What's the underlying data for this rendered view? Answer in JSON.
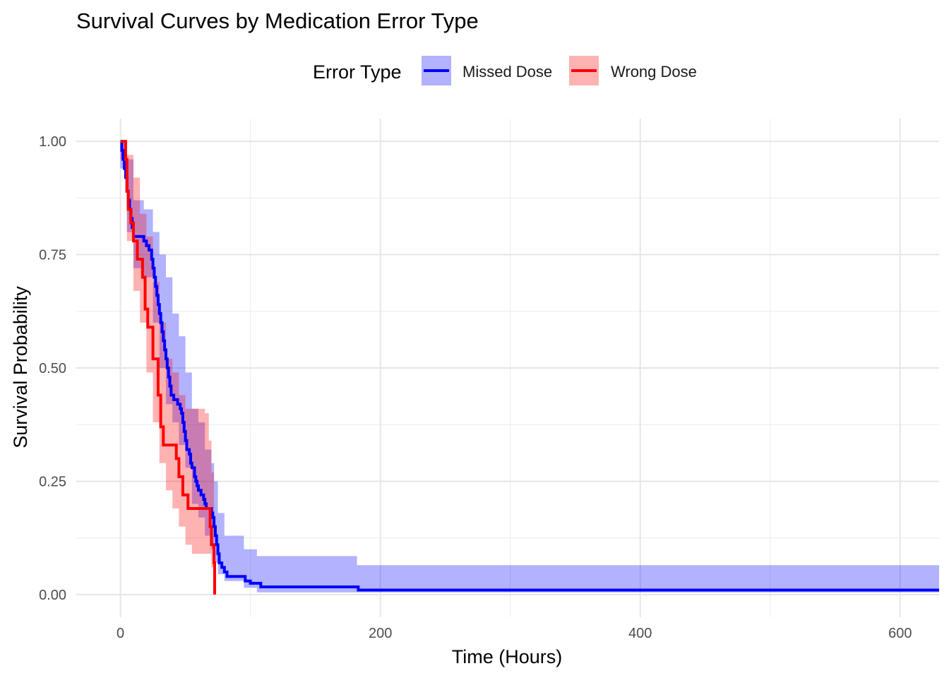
{
  "chart_data": {
    "type": "line",
    "title": "Survival Curves by Medication Error Type",
    "xlabel": "Time (Hours)",
    "ylabel": "Survival Probability",
    "xlim": [
      -34,
      630
    ],
    "ylim": [
      -0.05,
      1.05
    ],
    "x_ticks": [
      0,
      200,
      400,
      600
    ],
    "x_tick_labels": [
      "0",
      "200",
      "400",
      "600"
    ],
    "y_ticks": [
      0,
      0.25,
      0.5,
      0.75,
      1.0
    ],
    "y_tick_labels": [
      "0.00",
      "0.25",
      "0.50",
      "0.75",
      "1.00"
    ],
    "grid": true,
    "legend": {
      "title": "Error Type",
      "position": "top"
    },
    "series": [
      {
        "name": "Missed Dose",
        "color": "#0000FF",
        "band_color": "#0000FF",
        "points": [
          [
            0,
            1.0
          ],
          [
            1,
            0.98
          ],
          [
            2,
            0.96
          ],
          [
            3,
            0.94
          ],
          [
            4,
            0.92
          ],
          [
            5,
            0.89
          ],
          [
            6,
            0.87
          ],
          [
            7,
            0.85
          ],
          [
            8,
            0.83
          ],
          [
            9,
            0.81
          ],
          [
            10,
            0.79
          ],
          [
            18,
            0.78
          ],
          [
            20,
            0.77
          ],
          [
            22,
            0.76
          ],
          [
            24,
            0.74
          ],
          [
            25,
            0.72
          ],
          [
            26,
            0.7
          ],
          [
            27,
            0.68
          ],
          [
            28,
            0.66
          ],
          [
            29,
            0.64
          ],
          [
            30,
            0.62
          ],
          [
            31,
            0.6
          ],
          [
            32,
            0.58
          ],
          [
            33,
            0.56
          ],
          [
            34,
            0.54
          ],
          [
            35,
            0.52
          ],
          [
            36,
            0.5
          ],
          [
            37,
            0.48
          ],
          [
            38,
            0.46
          ],
          [
            39,
            0.44
          ],
          [
            41,
            0.43
          ],
          [
            44,
            0.42
          ],
          [
            46,
            0.41
          ],
          [
            47,
            0.4
          ],
          [
            48,
            0.38
          ],
          [
            49,
            0.36
          ],
          [
            50,
            0.34
          ],
          [
            51,
            0.32
          ],
          [
            53,
            0.31
          ],
          [
            54,
            0.29
          ],
          [
            55,
            0.28
          ],
          [
            57,
            0.26
          ],
          [
            58,
            0.25
          ],
          [
            59,
            0.24
          ],
          [
            60,
            0.23
          ],
          [
            62,
            0.22
          ],
          [
            64,
            0.21
          ],
          [
            65,
            0.2
          ],
          [
            66,
            0.19
          ],
          [
            70,
            0.18
          ],
          [
            71,
            0.17
          ],
          [
            72,
            0.15
          ],
          [
            73,
            0.13
          ],
          [
            74,
            0.11
          ],
          [
            75,
            0.09
          ],
          [
            76,
            0.07
          ],
          [
            78,
            0.06
          ],
          [
            80,
            0.05
          ],
          [
            82,
            0.04
          ],
          [
            92,
            0.04
          ],
          [
            96,
            0.03
          ],
          [
            100,
            0.025
          ],
          [
            108,
            0.017
          ],
          [
            182,
            0.017
          ],
          [
            183,
            0.01
          ],
          [
            630,
            0.01
          ]
        ],
        "upper": [
          [
            0,
            1.0
          ],
          [
            5,
            0.96
          ],
          [
            10,
            0.87
          ],
          [
            18,
            0.85
          ],
          [
            25,
            0.8
          ],
          [
            30,
            0.75
          ],
          [
            35,
            0.7
          ],
          [
            40,
            0.62
          ],
          [
            45,
            0.57
          ],
          [
            50,
            0.49
          ],
          [
            55,
            0.41
          ],
          [
            60,
            0.38
          ],
          [
            65,
            0.32
          ],
          [
            70,
            0.29
          ],
          [
            72,
            0.25
          ],
          [
            75,
            0.18
          ],
          [
            80,
            0.13
          ],
          [
            95,
            0.1
          ],
          [
            105,
            0.085
          ],
          [
            182,
            0.065
          ],
          [
            183,
            0.065
          ],
          [
            630,
            0.065
          ]
        ],
        "lower": [
          [
            0,
            0.94
          ],
          [
            5,
            0.8
          ],
          [
            10,
            0.72
          ],
          [
            18,
            0.7
          ],
          [
            25,
            0.6
          ],
          [
            30,
            0.5
          ],
          [
            35,
            0.42
          ],
          [
            40,
            0.38
          ],
          [
            45,
            0.33
          ],
          [
            50,
            0.28
          ],
          [
            55,
            0.2
          ],
          [
            60,
            0.17
          ],
          [
            65,
            0.13
          ],
          [
            70,
            0.1
          ],
          [
            72,
            0.07
          ],
          [
            75,
            0.045
          ],
          [
            80,
            0.03
          ],
          [
            95,
            0.015
          ],
          [
            105,
            0.005
          ],
          [
            630,
            0.0
          ]
        ]
      },
      {
        "name": "Wrong Dose",
        "color": "#FF0000",
        "band_color": "#FF0000",
        "points": [
          [
            0,
            1.0
          ],
          [
            3,
            1.0
          ],
          [
            4,
            0.96
          ],
          [
            5,
            0.89
          ],
          [
            6,
            0.85
          ],
          [
            8,
            0.82
          ],
          [
            10,
            0.78
          ],
          [
            13,
            0.74
          ],
          [
            17,
            0.7
          ],
          [
            19,
            0.63
          ],
          [
            21,
            0.59
          ],
          [
            25,
            0.52
          ],
          [
            29,
            0.44
          ],
          [
            31,
            0.37
          ],
          [
            33,
            0.33
          ],
          [
            40,
            0.33
          ],
          [
            43,
            0.3
          ],
          [
            45,
            0.26
          ],
          [
            48,
            0.22
          ],
          [
            52,
            0.19
          ],
          [
            68,
            0.19
          ],
          [
            69,
            0.15
          ],
          [
            70,
            0.11
          ],
          [
            72,
            0.07
          ],
          [
            72.5,
            0.0
          ]
        ],
        "upper": [
          [
            0,
            1.0
          ],
          [
            5,
            0.97
          ],
          [
            10,
            0.92
          ],
          [
            15,
            0.84
          ],
          [
            20,
            0.79
          ],
          [
            25,
            0.69
          ],
          [
            30,
            0.6
          ],
          [
            35,
            0.52
          ],
          [
            40,
            0.49
          ],
          [
            45,
            0.44
          ],
          [
            50,
            0.41
          ],
          [
            55,
            0.41
          ],
          [
            60,
            0.41
          ],
          [
            65,
            0.4
          ],
          [
            68,
            0.34
          ],
          [
            70,
            0.27
          ],
          [
            72,
            0.21
          ]
        ],
        "lower": [
          [
            0,
            0.96
          ],
          [
            5,
            0.78
          ],
          [
            10,
            0.67
          ],
          [
            15,
            0.6
          ],
          [
            20,
            0.49
          ],
          [
            25,
            0.38
          ],
          [
            30,
            0.29
          ],
          [
            35,
            0.23
          ],
          [
            40,
            0.19
          ],
          [
            45,
            0.15
          ],
          [
            50,
            0.11
          ],
          [
            55,
            0.09
          ],
          [
            60,
            0.09
          ],
          [
            65,
            0.09
          ],
          [
            68,
            0.09
          ],
          [
            70,
            0.06
          ],
          [
            72,
            0.03
          ]
        ]
      }
    ]
  }
}
